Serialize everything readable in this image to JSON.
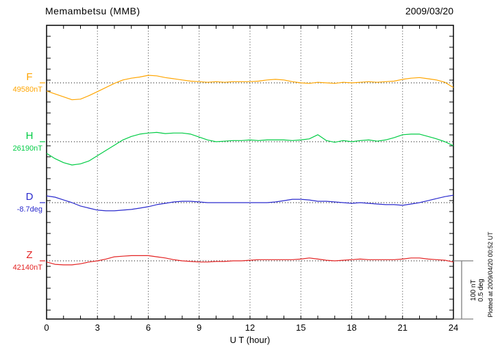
{
  "header": {
    "title": "Memambetsu (MMB)",
    "date": "2009/03/20"
  },
  "xaxis": {
    "label": "U T (hour)",
    "ticks": [
      "0",
      "3",
      "6",
      "9",
      "12",
      "15",
      "18",
      "21",
      "24"
    ]
  },
  "scale_bar": {
    "line1": "100 nT",
    "line2": "0.5 deg"
  },
  "footer_note": "Plotted at 2009/04/20 00:52 UT",
  "chart_data": {
    "type": "line",
    "title": "Memambetsu (MMB) magnetogram",
    "date": "2009/03/20",
    "xlabel": "U T (hour)",
    "x_range_hours": [
      0,
      24
    ],
    "x_step_hours": 0.5,
    "x_tick_labels": [
      "0",
      "3",
      "6",
      "9",
      "12",
      "15",
      "18",
      "21",
      "24"
    ],
    "grid": "dotted vertical gridlines every 3 hours; dotted horizontal baseline per component",
    "legend_position": "left margin, one colored label per component",
    "scale": "100 nT and 0.5 deg correspond to the right-hand scale bar",
    "series": [
      {
        "id": "F",
        "label": "F",
        "baseline_label": "49580nT",
        "baseline_value": 49580,
        "unit": "nT",
        "color": "#FFA500",
        "values_offset_nT": [
          -14,
          -19,
          -24,
          -29,
          -28,
          -22,
          -15,
          -8,
          -1,
          5,
          8,
          10,
          13,
          12,
          9,
          7,
          5,
          3,
          2,
          1,
          2,
          1,
          2,
          2,
          2,
          3,
          5,
          6,
          5,
          2,
          0,
          -1,
          1,
          0,
          -1,
          1,
          0,
          1,
          2,
          1,
          2,
          3,
          6,
          8,
          9,
          7,
          5,
          1,
          -8
        ]
      },
      {
        "id": "H",
        "label": "H",
        "baseline_label": "26190nT",
        "baseline_value": 26190,
        "unit": "nT",
        "color": "#00CC44",
        "values_offset_nT": [
          -20,
          -29,
          -36,
          -40,
          -38,
          -33,
          -24,
          -15,
          -6,
          3,
          9,
          13,
          15,
          16,
          14,
          15,
          15,
          13,
          8,
          3,
          0,
          1,
          2,
          2,
          3,
          2,
          3,
          3,
          3,
          2,
          3,
          5,
          12,
          2,
          -1,
          2,
          0,
          2,
          3,
          1,
          3,
          7,
          12,
          13,
          13,
          9,
          5,
          0,
          -7
        ]
      },
      {
        "id": "D",
        "label": "D",
        "baseline_label": "-8.7deg",
        "baseline_value": -8.7,
        "unit": "deg",
        "color": "#2A2ACD",
        "values_offset_deg": [
          0.058,
          0.047,
          0.023,
          0,
          -0.029,
          -0.047,
          -0.064,
          -0.07,
          -0.07,
          -0.064,
          -0.058,
          -0.047,
          -0.035,
          -0.017,
          -0.006,
          0.006,
          0.012,
          0.012,
          0.006,
          0,
          0,
          0,
          0,
          0,
          0,
          0,
          0,
          0.006,
          0.017,
          0.029,
          0.029,
          0.023,
          0.012,
          0.012,
          0.006,
          0,
          -0.006,
          0,
          -0.006,
          -0.012,
          -0.017,
          -0.017,
          -0.023,
          -0.012,
          0,
          0.017,
          0.035,
          0.052,
          0.064
        ]
      },
      {
        "id": "Z",
        "label": "Z",
        "baseline_label": "42140nT",
        "baseline_value": 42140,
        "unit": "nT",
        "color": "#E32222",
        "values_offset_nT": [
          -2,
          -6,
          -7,
          -7,
          -5,
          -2,
          0,
          3,
          7,
          8,
          9,
          9,
          9,
          7,
          5,
          2,
          0,
          -1,
          -2,
          -2,
          -1,
          -1,
          0,
          0,
          1,
          2,
          2,
          2,
          2,
          2,
          3,
          5,
          3,
          1,
          0,
          1,
          2,
          3,
          2,
          2,
          2,
          2,
          3,
          5,
          5,
          3,
          2,
          1,
          -2
        ]
      }
    ]
  }
}
